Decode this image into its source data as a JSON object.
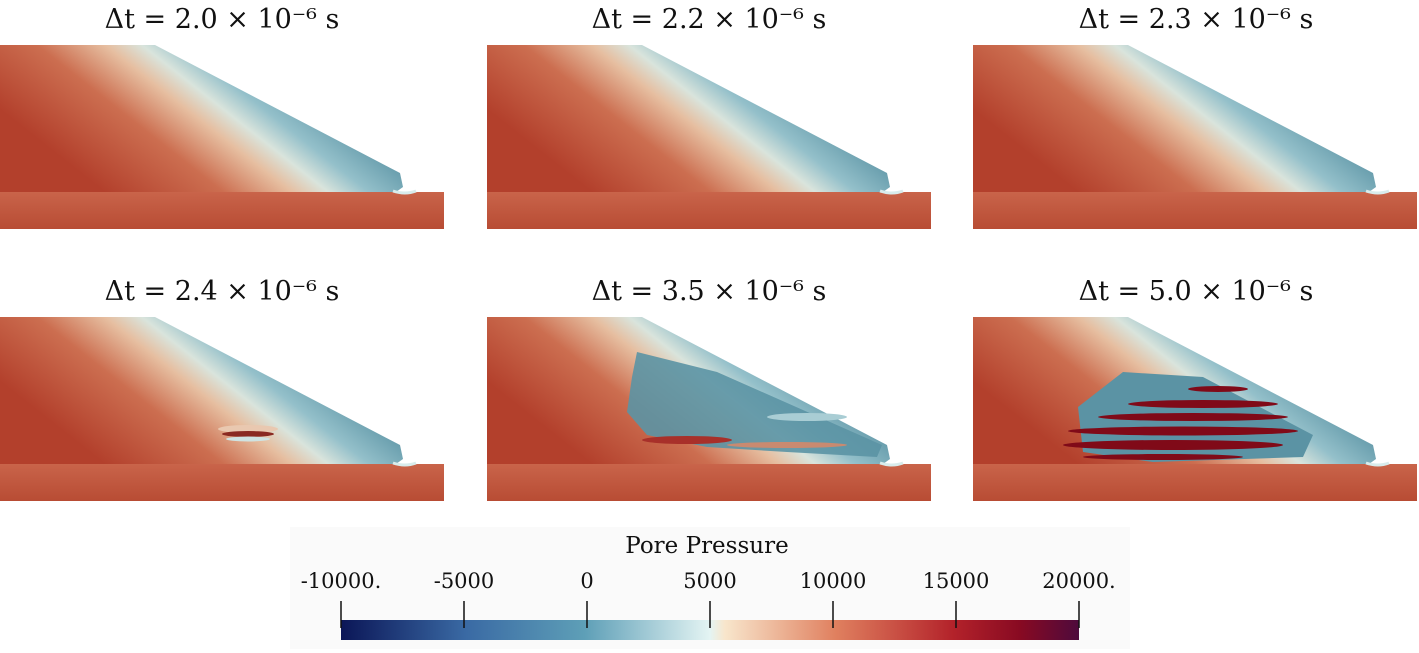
{
  "panels": [
    {
      "title": "Δt = 2.0 × 10⁻⁶ s"
    },
    {
      "title": "Δt = 2.2 × 10⁻⁶ s"
    },
    {
      "title": "Δt = 2.3 × 10⁻⁶ s"
    },
    {
      "title": "Δt = 2.4 × 10⁻⁶ s"
    },
    {
      "title": "Δt = 3.5 × 10⁻⁶ s"
    },
    {
      "title": "Δt = 5.0 × 10⁻⁶ s"
    }
  ],
  "colorbar": {
    "title": "Pore Pressure",
    "lim": [
      -10000,
      20000
    ],
    "ticks": [
      {
        "value": -10000,
        "label": "-10000."
      },
      -5000,
      0,
      5000,
      10000,
      15000,
      {
        "value": 20000,
        "label": "20000."
      }
    ]
  }
}
